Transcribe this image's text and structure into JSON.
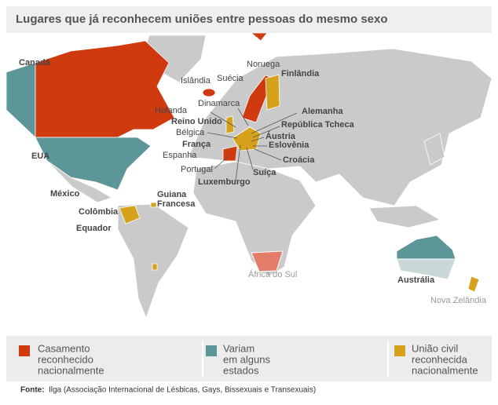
{
  "header": {
    "title": "Lugares que já reconhecem uniões entre pessoas do mesmo sexo"
  },
  "map": {
    "labels": [
      "Canadá",
      "Islândia",
      "Noruega",
      "Suécia",
      "Finlândia",
      "Dinamarca",
      "Holanda",
      "Alemanha",
      "Reino Unido",
      "República Tcheca",
      "Bélgica",
      "Áustria",
      "França",
      "Eslovênia",
      "EUA",
      "Espanha",
      "Croácia",
      "Portugal",
      "Luxemburgo",
      "Suíça",
      "México",
      "Guiana",
      "Francesa",
      "Colômbia",
      "Equador",
      "África do Sul",
      "Austrália",
      "Nova Zelândia"
    ]
  },
  "legend": [
    {
      "lines": [
        "Casamento",
        "reconhecido",
        "nacionalmente"
      ]
    },
    {
      "lines": [
        "Variam",
        "em alguns",
        "estados"
      ]
    },
    {
      "lines": [
        "União civil",
        "reconhecida",
        "nacionalmente"
      ]
    }
  ],
  "source": {
    "label": "Fonte:",
    "text": "Ilga (Associação Internacional de Lésbicas, Gays, Bissexuais e Transexuais)"
  }
}
